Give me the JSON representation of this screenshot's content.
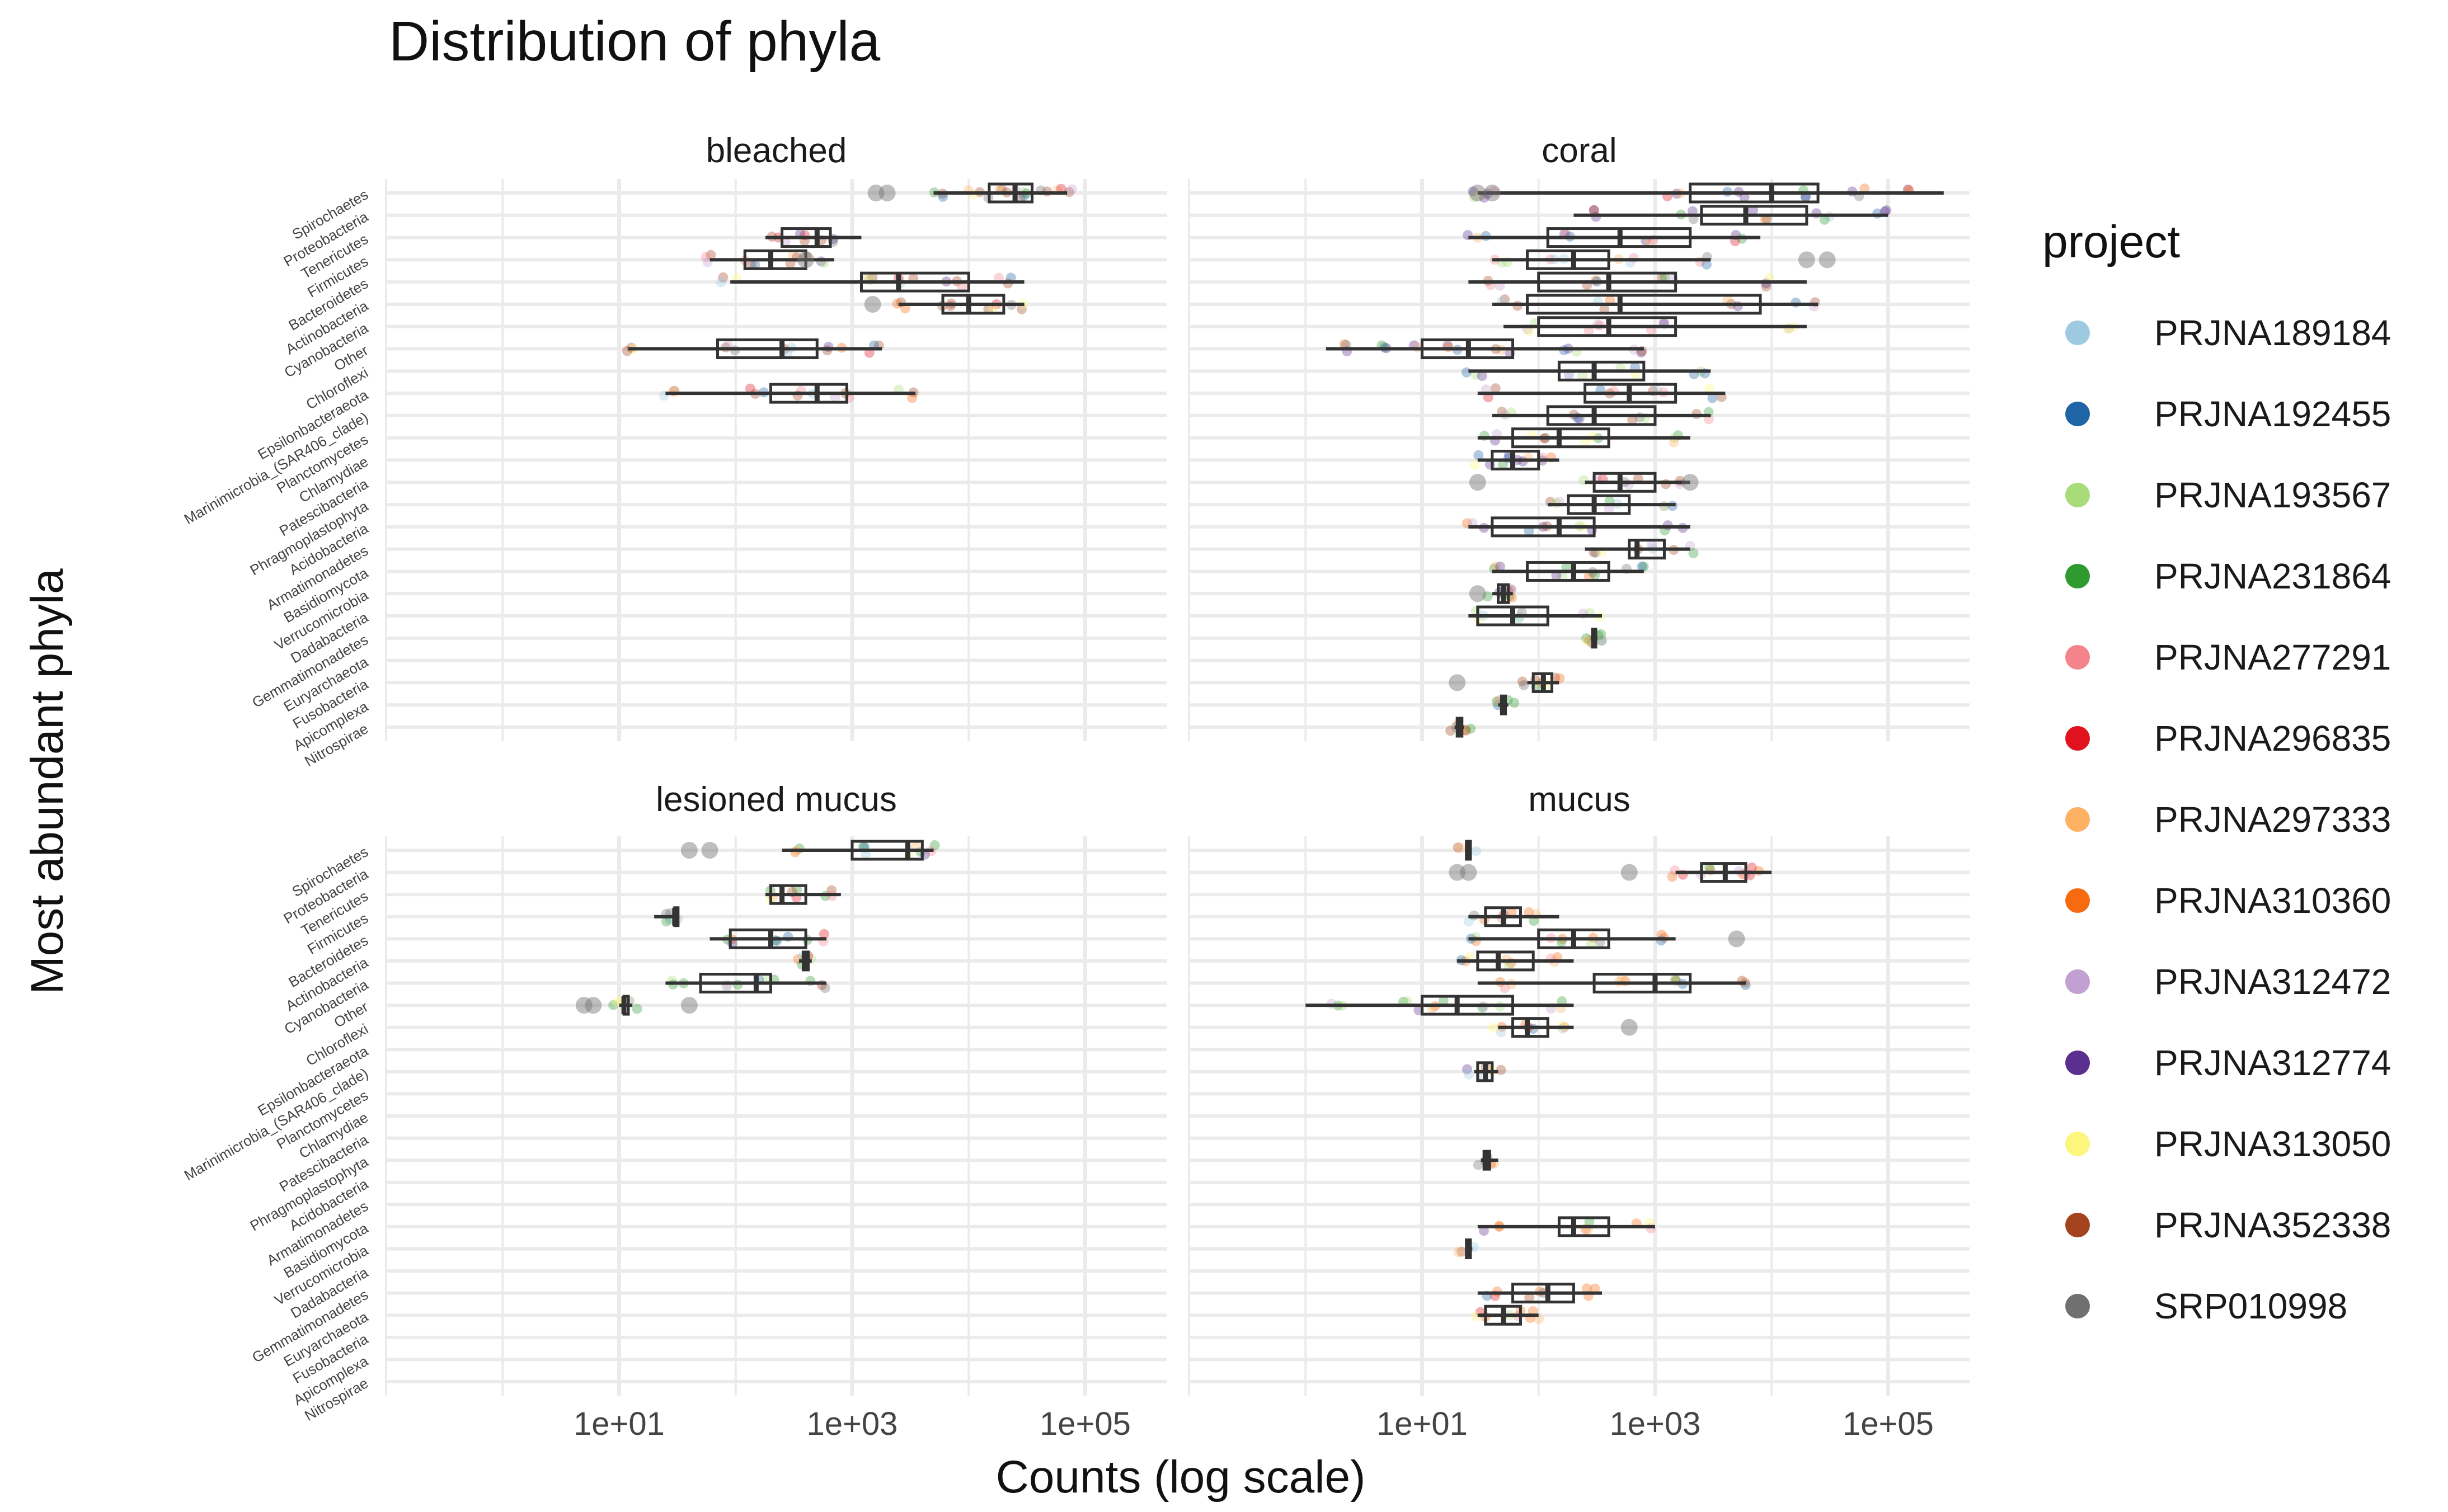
{
  "chart_data": {
    "type": "boxplot",
    "title": "Distribution of phyla",
    "xlabel": "Counts (log scale)",
    "ylabel": "Most abundant phyla",
    "x_scale": "log10",
    "x_range": [
      0.1,
      500000
    ],
    "x_ticks": [
      10,
      1000,
      100000
    ],
    "x_tick_labels": [
      "1e+01",
      "1e+03",
      "1e+05"
    ],
    "categories": [
      "Spirochaetes",
      "Proteobacteria",
      "Tenericutes",
      "Firmicutes",
      "Bacteroidetes",
      "Actinobacteria",
      "Cyanobacteria",
      "Other",
      "Chloroflexi",
      "Epsilonbacteraeota",
      "Marinimicrobia_(SAR406_clade)",
      "Planctomycetes",
      "Chlamydiae",
      "Patescibacteria",
      "Phragmoplastophyta",
      "Acidobacteria",
      "Armatimonadetes",
      "Basidiomycota",
      "Verrucomicrobia",
      "Dadabacteria",
      "Gemmatimonadetes",
      "Euryarchaeota",
      "Fusobacteria",
      "Apicomplexa",
      "Nitrospirae"
    ],
    "legend": {
      "title": "project",
      "position": "right",
      "items": [
        {
          "name": "PRJNA189184",
          "color": "#9ecae1"
        },
        {
          "name": "PRJNA192455",
          "color": "#1f65a6"
        },
        {
          "name": "PRJNA193567",
          "color": "#a8dc7a"
        },
        {
          "name": "PRJNA231864",
          "color": "#2e9a30"
        },
        {
          "name": "PRJNA277291",
          "color": "#f4838c"
        },
        {
          "name": "PRJNA296835",
          "color": "#e0121e"
        },
        {
          "name": "PRJNA297333",
          "color": "#fdb163"
        },
        {
          "name": "PRJNA310360",
          "color": "#f76b10"
        },
        {
          "name": "PRJNA312472",
          "color": "#c2a0d2"
        },
        {
          "name": "PRJNA312774",
          "color": "#5a2f8f"
        },
        {
          "name": "PRJNA313050",
          "color": "#fdf57c"
        },
        {
          "name": "PRJNA352338",
          "color": "#a4441f"
        },
        {
          "name": "SRP010998",
          "color": "#707070"
        }
      ]
    },
    "grid": true,
    "panels": [
      {
        "name": "bleached",
        "boxes": [
          {
            "cat": "Spirochaetes",
            "min": 5000,
            "q1": 15000,
            "median": 25000,
            "q3": 35000,
            "max": 70000,
            "color": "#a4441f",
            "points": [
              6000,
              12000,
              18000,
              25000,
              32000,
              50000,
              70000
            ],
            "outliers": [
              1600,
              2000
            ]
          },
          {
            "cat": "Tenericutes",
            "min": 180,
            "q1": 250,
            "median": 500,
            "q3": 650,
            "max": 1200,
            "color": "#a4441f",
            "points": [
              250,
              400,
              600
            ]
          },
          {
            "cat": "Firmicutes",
            "min": 60,
            "q1": 120,
            "median": 200,
            "q3": 400,
            "max": 700,
            "color": "#a4441f",
            "points": [
              60,
              150,
              300,
              500
            ],
            "outliers": [
              400
            ]
          },
          {
            "cat": "Bacteroidetes",
            "min": 90,
            "q1": 1200,
            "median": 2500,
            "q3": 10000,
            "max": 30000,
            "color": "#a4441f",
            "points": [
              90,
              1500,
              3000,
              8000,
              20000
            ]
          },
          {
            "cat": "Actinobacteria",
            "min": 2500,
            "q1": 6000,
            "median": 10000,
            "q3": 20000,
            "max": 30000,
            "color": "#a4441f",
            "points": [
              3000,
              7000,
              15000,
              28000
            ],
            "outliers": [
              1500
            ]
          },
          {
            "cat": "Other",
            "min": 12,
            "q1": 70,
            "median": 250,
            "q3": 500,
            "max": 1800,
            "color": "#a4441f",
            "points": [
              12,
              100,
              300,
              700,
              1500
            ]
          },
          {
            "cat": "Epsilonbacteraeota",
            "min": 25,
            "q1": 200,
            "median": 500,
            "q3": 900,
            "max": 3500,
            "color": "#a4441f",
            "points": [
              30,
              150,
              400,
              800,
              3000
            ]
          }
        ]
      },
      {
        "name": "coral",
        "boxes": [
          {
            "cat": "Spirochaetes",
            "min": 30,
            "q1": 2000,
            "median": 10000,
            "q3": 25000,
            "max": 300000,
            "color": "#5a2f8f",
            "points": [
              30,
              40,
              1500,
              5000,
              20000,
              60000,
              150000
            ],
            "outliers": [
              30,
              40
            ]
          },
          {
            "cat": "Proteobacteria",
            "min": 200,
            "q1": 2500,
            "median": 6000,
            "q3": 20000,
            "max": 100000,
            "color": "#5a2f8f",
            "points": [
              300,
              2000,
              8000,
              30000,
              90000
            ]
          },
          {
            "cat": "Tenericutes",
            "min": 25,
            "q1": 120,
            "median": 500,
            "q3": 2000,
            "max": 8000,
            "color": "#5a2f8f",
            "points": [
              30,
              200,
              900,
              5000
            ]
          },
          {
            "cat": "Firmicutes",
            "min": 40,
            "q1": 80,
            "median": 200,
            "q3": 400,
            "max": 3000,
            "color": "#f4838c",
            "points": [
              50,
              150,
              600,
              2500
            ],
            "outliers": [
              20000,
              30000
            ]
          },
          {
            "cat": "Bacteroidetes",
            "min": 25,
            "q1": 100,
            "median": 400,
            "q3": 1500,
            "max": 20000,
            "color": "#a4441f",
            "points": [
              40,
              300,
              1200,
              10000
            ]
          },
          {
            "cat": "Actinobacteria",
            "min": 40,
            "q1": 80,
            "median": 500,
            "q3": 8000,
            "max": 25000,
            "color": "#a4441f",
            "points": [
              60,
              400,
              5000,
              20000
            ]
          },
          {
            "cat": "Cyanobacteria",
            "min": 50,
            "q1": 100,
            "median": 400,
            "q3": 1500,
            "max": 20000,
            "color": "#c2a0d2",
            "points": [
              80,
              300,
              1000,
              15000
            ]
          },
          {
            "cat": "Other",
            "min": 1.5,
            "q1": 10,
            "median": 25,
            "q3": 60,
            "max": 800,
            "color": "#5a2f8f",
            "points": [
              2,
              5,
              10,
              20,
              50,
              200,
              700
            ]
          },
          {
            "cat": "Chloroflexi",
            "min": 25,
            "q1": 150,
            "median": 300,
            "q3": 800,
            "max": 3000,
            "color": "#a8dc7a",
            "points": [
              30,
              200,
              600,
              2500
            ]
          },
          {
            "cat": "Epsilonbacteraeota",
            "min": 30,
            "q1": 250,
            "median": 600,
            "q3": 1500,
            "max": 4000,
            "color": "#a4441f",
            "points": [
              40,
              400,
              1000,
              3500
            ]
          },
          {
            "cat": "Marinimicrobia_(SAR406_clade)",
            "min": 40,
            "q1": 120,
            "median": 300,
            "q3": 1000,
            "max": 3000,
            "color": "#a4441f",
            "points": [
              50,
              200,
              700,
              2800
            ]
          },
          {
            "cat": "Planctomycetes",
            "min": 30,
            "q1": 60,
            "median": 150,
            "q3": 400,
            "max": 2000,
            "color": "#2e9a30",
            "points": [
              40,
              100,
              300,
              1500
            ]
          },
          {
            "cat": "Chlamydiae",
            "min": 30,
            "q1": 40,
            "median": 60,
            "q3": 100,
            "max": 150,
            "color": "#5a2f8f",
            "points": [
              35,
              50,
              80,
              120
            ]
          },
          {
            "cat": "Patescibacteria",
            "min": 250,
            "q1": 300,
            "median": 500,
            "q3": 1000,
            "max": 2000,
            "color": "#c2a0d2",
            "points": [
              300,
              600,
              1500
            ],
            "outliers": [
              30,
              2000
            ]
          },
          {
            "cat": "Phragmoplastophyta",
            "min": 120,
            "q1": 180,
            "median": 300,
            "q3": 600,
            "max": 1500,
            "color": "#c2a0d2",
            "points": [
              150,
              400,
              1200
            ]
          },
          {
            "cat": "Acidobacteria",
            "min": 25,
            "q1": 40,
            "median": 150,
            "q3": 300,
            "max": 2000,
            "color": "#5a2f8f",
            "points": [
              30,
              100,
              250,
              1500
            ]
          },
          {
            "cat": "Armatimonadetes",
            "min": 250,
            "q1": 600,
            "median": 700,
            "q3": 1200,
            "max": 2000,
            "color": "#a4441f",
            "points": [
              300,
              800,
              1800
            ]
          },
          {
            "cat": "Basidiomycota",
            "min": 40,
            "q1": 80,
            "median": 200,
            "q3": 400,
            "max": 800,
            "color": "#2e9a30",
            "points": [
              50,
              150,
              300,
              700
            ]
          },
          {
            "cat": "Verrucomicrobia",
            "min": 40,
            "q1": 45,
            "median": 50,
            "q3": 55,
            "max": 60,
            "color": "#2e9a30",
            "points": [
              42,
              50,
              58
            ],
            "outliers": [
              30
            ]
          },
          {
            "cat": "Dadabacteria",
            "min": 25,
            "q1": 30,
            "median": 60,
            "q3": 120,
            "max": 350,
            "color": "#a8dc7a",
            "points": [
              30,
              80,
              300
            ]
          },
          {
            "cat": "Gemmatimonadetes",
            "min": 280,
            "q1": 290,
            "median": 300,
            "q3": 310,
            "max": 320,
            "color": "#2e9a30",
            "points": [
              290,
              300,
              310
            ]
          },
          {
            "cat": "Fusobacteria",
            "min": 80,
            "q1": 90,
            "median": 110,
            "q3": 130,
            "max": 150,
            "color": "#a4441f",
            "points": [
              85,
              110,
              140
            ],
            "outliers": [
              20
            ]
          },
          {
            "cat": "Apicomplexa",
            "min": 45,
            "q1": 48,
            "median": 50,
            "q3": 52,
            "max": 55,
            "color": "#2e9a30",
            "points": [
              48,
              52
            ]
          },
          {
            "cat": "Nitrospirae",
            "min": 19,
            "q1": 20,
            "median": 21,
            "q3": 22,
            "max": 23,
            "color": "#a4441f",
            "points": [
              20,
              22
            ]
          }
        ]
      },
      {
        "name": "lesioned mucus",
        "boxes": [
          {
            "cat": "Spirochaetes",
            "min": 250,
            "q1": 1000,
            "median": 3000,
            "q3": 4000,
            "max": 5000,
            "color": "#2e9a30",
            "points": [
              300,
              1500,
              3500,
              4800
            ],
            "outliers": [
              40,
              60
            ]
          },
          {
            "cat": "Tenericutes",
            "min": 180,
            "q1": 200,
            "median": 250,
            "q3": 400,
            "max": 800,
            "color": "#2e9a30",
            "points": [
              200,
              300,
              600
            ]
          },
          {
            "cat": "Firmicutes",
            "min": 20,
            "q1": 30,
            "median": 30,
            "q3": 30,
            "max": 30,
            "color": "#707070",
            "points": [
              25,
              30
            ]
          },
          {
            "cat": "Bacteroidetes",
            "min": 60,
            "q1": 90,
            "median": 200,
            "q3": 400,
            "max": 600,
            "color": "#2e9a30",
            "points": [
              80,
              250,
              500
            ]
          },
          {
            "cat": "Actinobacteria",
            "min": 350,
            "q1": 380,
            "median": 400,
            "q3": 420,
            "max": 450,
            "color": "#2e9a30",
            "points": [
              380,
              430
            ]
          },
          {
            "cat": "Cyanobacteria",
            "min": 25,
            "q1": 50,
            "median": 150,
            "q3": 200,
            "max": 600,
            "color": "#2e9a30",
            "points": [
              30,
              100,
              180,
              500
            ]
          },
          {
            "cat": "Other",
            "min": 10,
            "q1": 11,
            "median": 11,
            "q3": 12,
            "max": 13,
            "color": "#2e9a30",
            "points": [
              11,
              12
            ],
            "outliers": [
              5,
              6,
              40
            ]
          }
        ]
      },
      {
        "name": "mucus",
        "boxes": [
          {
            "cat": "Spirochaetes",
            "min": 24,
            "q1": 24,
            "median": 25,
            "q3": 26,
            "max": 26,
            "color": "#a4441f",
            "points": [
              25
            ]
          },
          {
            "cat": "Proteobacteria",
            "min": 1500,
            "q1": 2500,
            "median": 4000,
            "q3": 6000,
            "max": 10000,
            "color": "#f76b10",
            "points": [
              1600,
              3000,
              5000,
              8000
            ],
            "outliers": [
              20,
              25,
              600
            ]
          },
          {
            "cat": "Firmicutes",
            "min": 25,
            "q1": 35,
            "median": 50,
            "q3": 70,
            "max": 150,
            "color": "#f76b10",
            "points": [
              30,
              50,
              100
            ]
          },
          {
            "cat": "Bacteroidetes",
            "min": 25,
            "q1": 100,
            "median": 200,
            "q3": 400,
            "max": 1500,
            "color": "#f76b10",
            "points": [
              30,
              150,
              300,
              1200
            ],
            "outliers": [
              5000
            ]
          },
          {
            "cat": "Actinobacteria",
            "min": 20,
            "q1": 30,
            "median": 45,
            "q3": 90,
            "max": 200,
            "color": "#f76b10",
            "points": [
              25,
              50,
              150
            ]
          },
          {
            "cat": "Cyanobacteria",
            "min": 30,
            "q1": 300,
            "median": 1000,
            "q3": 2000,
            "max": 6000,
            "color": "#f76b10",
            "points": [
              50,
              500,
              1500,
              5000
            ]
          },
          {
            "cat": "Other",
            "min": 1,
            "q1": 10,
            "median": 20,
            "q3": 60,
            "max": 200,
            "color": "#2e9a30",
            "points": [
              2,
              8,
              15,
              40,
              150
            ]
          },
          {
            "cat": "Chloroflexi",
            "min": 45,
            "q1": 60,
            "median": 80,
            "q3": 120,
            "max": 200,
            "color": "#f76b10",
            "points": [
              50,
              90,
              180
            ],
            "outliers": [
              600
            ]
          },
          {
            "cat": "Marinimicrobia_(SAR406_clade)",
            "min": 28,
            "q1": 30,
            "median": 35,
            "q3": 40,
            "max": 45,
            "color": "#a4441f",
            "points": [
              30,
              40
            ]
          },
          {
            "cat": "Phragmoplastophyta",
            "min": 32,
            "q1": 34,
            "median": 36,
            "q3": 38,
            "max": 45,
            "color": "#707070",
            "points": [
              35,
              38
            ]
          },
          {
            "cat": "Basidiomycota",
            "min": 30,
            "q1": 150,
            "median": 200,
            "q3": 400,
            "max": 1000,
            "color": "#f76b10",
            "points": [
              40,
              250,
              800
            ]
          },
          {
            "cat": "Verrucomicrobia",
            "min": 24,
            "q1": 24,
            "median": 25,
            "q3": 26,
            "max": 27,
            "color": "#a4441f",
            "points": [
              25
            ]
          },
          {
            "cat": "Gemmatimonadetes",
            "min": 30,
            "q1": 60,
            "median": 120,
            "q3": 200,
            "max": 350,
            "color": "#f76b10",
            "points": [
              40,
              100,
              300
            ]
          },
          {
            "cat": "Euryarchaeota",
            "min": 30,
            "q1": 35,
            "median": 50,
            "q3": 70,
            "max": 100,
            "color": "#f76b10",
            "points": [
              35,
              60,
              90
            ]
          }
        ]
      }
    ]
  }
}
